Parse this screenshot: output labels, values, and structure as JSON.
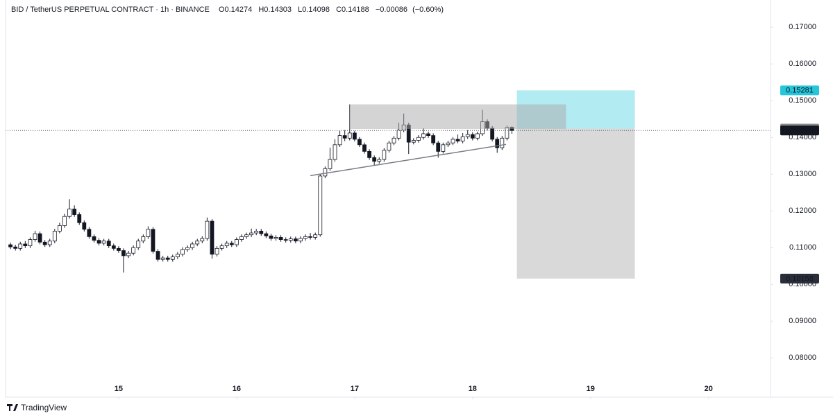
{
  "chart_data": {
    "type": "candlestick",
    "title": "BID / TetherUS PERPETUAL CONTRACT · 1h · BINANCE",
    "ohlc_labels": [
      "O",
      "H",
      "L",
      "C"
    ],
    "change": "−0.00086",
    "change_percent": "(−0.60%)",
    "candles": [
      [
        0.1108,
        0.1114,
        0.1096,
        0.1102
      ],
      [
        0.1102,
        0.1108,
        0.1092,
        0.1098
      ],
      [
        0.1098,
        0.1116,
        0.1092,
        0.111
      ],
      [
        0.111,
        0.1118,
        0.1099,
        0.1105
      ],
      [
        0.1105,
        0.1128,
        0.1099,
        0.1122
      ],
      [
        0.1122,
        0.1146,
        0.1116,
        0.1138
      ],
      [
        0.1138,
        0.1144,
        0.1109,
        0.1115
      ],
      [
        0.1115,
        0.1121,
        0.1102,
        0.1108
      ],
      [
        0.1108,
        0.1124,
        0.1102,
        0.1118
      ],
      [
        0.1118,
        0.1151,
        0.1112,
        0.1145
      ],
      [
        0.1145,
        0.1168,
        0.1139,
        0.116
      ],
      [
        0.116,
        0.1192,
        0.1154,
        0.1185
      ],
      [
        0.1185,
        0.1232,
        0.1179,
        0.1205
      ],
      [
        0.1205,
        0.1215,
        0.1184,
        0.119
      ],
      [
        0.119,
        0.1196,
        0.1162,
        0.1168
      ],
      [
        0.1168,
        0.1174,
        0.1144,
        0.115
      ],
      [
        0.115,
        0.1156,
        0.1124,
        0.113
      ],
      [
        0.113,
        0.1136,
        0.1114,
        0.112
      ],
      [
        0.112,
        0.1126,
        0.1106,
        0.1112
      ],
      [
        0.1112,
        0.1124,
        0.1106,
        0.1118
      ],
      [
        0.1118,
        0.1124,
        0.1099,
        0.1105
      ],
      [
        0.1105,
        0.1111,
        0.1092,
        0.1098
      ],
      [
        0.1098,
        0.1104,
        0.1086,
        0.1092
      ],
      [
        0.1092,
        0.1098,
        0.1032,
        0.1078
      ],
      [
        0.1078,
        0.1091,
        0.1072,
        0.1085
      ],
      [
        0.1085,
        0.1106,
        0.1079,
        0.11
      ],
      [
        0.11,
        0.1124,
        0.1094,
        0.1118
      ],
      [
        0.1118,
        0.1136,
        0.1112,
        0.113
      ],
      [
        0.113,
        0.1158,
        0.1124,
        0.115
      ],
      [
        0.115,
        0.1156,
        0.1084,
        0.109
      ],
      [
        0.109,
        0.1096,
        0.1062,
        0.1068
      ],
      [
        0.1068,
        0.1078,
        0.1062,
        0.1072
      ],
      [
        0.1072,
        0.1078,
        0.1062,
        0.1068
      ],
      [
        0.1068,
        0.1081,
        0.1062,
        0.1075
      ],
      [
        0.1075,
        0.1088,
        0.1069,
        0.1082
      ],
      [
        0.1082,
        0.1101,
        0.1076,
        0.1095
      ],
      [
        0.1095,
        0.1106,
        0.1089,
        0.11
      ],
      [
        0.11,
        0.1116,
        0.1094,
        0.111
      ],
      [
        0.111,
        0.1124,
        0.1104,
        0.1118
      ],
      [
        0.1118,
        0.1131,
        0.1112,
        0.1125
      ],
      [
        0.1125,
        0.1182,
        0.1119,
        0.1172
      ],
      [
        0.1172,
        0.1178,
        0.107,
        0.1082
      ],
      [
        0.1082,
        0.1104,
        0.1076,
        0.1098
      ],
      [
        0.1098,
        0.1111,
        0.1092,
        0.1105
      ],
      [
        0.1105,
        0.1118,
        0.1099,
        0.1112
      ],
      [
        0.1112,
        0.1118,
        0.1102,
        0.1108
      ],
      [
        0.1108,
        0.1128,
        0.1102,
        0.1122
      ],
      [
        0.1122,
        0.1136,
        0.1116,
        0.113
      ],
      [
        0.113,
        0.1141,
        0.1124,
        0.1135
      ],
      [
        0.1135,
        0.1152,
        0.1129,
        0.114
      ],
      [
        0.114,
        0.1151,
        0.1134,
        0.1145
      ],
      [
        0.1145,
        0.1151,
        0.1132,
        0.1138
      ],
      [
        0.1138,
        0.1144,
        0.1126,
        0.1132
      ],
      [
        0.1132,
        0.1138,
        0.1119,
        0.1125
      ],
      [
        0.1125,
        0.1134,
        0.1119,
        0.1128
      ],
      [
        0.1128,
        0.1134,
        0.1116,
        0.1122
      ],
      [
        0.1122,
        0.1128,
        0.1114,
        0.112
      ],
      [
        0.112,
        0.113,
        0.1114,
        0.1124
      ],
      [
        0.1124,
        0.113,
        0.1112,
        0.1118
      ],
      [
        0.1118,
        0.1131,
        0.1112,
        0.1125
      ],
      [
        0.1125,
        0.1136,
        0.1119,
        0.113
      ],
      [
        0.113,
        0.114,
        0.1122,
        0.1128
      ],
      [
        0.1128,
        0.1141,
        0.1122,
        0.1135
      ],
      [
        0.1135,
        0.13,
        0.113,
        0.1295
      ],
      [
        0.1295,
        0.1321,
        0.1289,
        0.1315
      ],
      [
        0.1315,
        0.1372,
        0.1309,
        0.134
      ],
      [
        0.134,
        0.1395,
        0.1334,
        0.138
      ],
      [
        0.138,
        0.1418,
        0.1374,
        0.1405
      ],
      [
        0.1405,
        0.142,
        0.139,
        0.1398
      ],
      [
        0.1398,
        0.149,
        0.1392,
        0.1412
      ],
      [
        0.1412,
        0.1418,
        0.1389,
        0.1395
      ],
      [
        0.1395,
        0.1401,
        0.1374,
        0.138
      ],
      [
        0.138,
        0.1386,
        0.1356,
        0.1362
      ],
      [
        0.1362,
        0.1368,
        0.1339,
        0.1345
      ],
      [
        0.1345,
        0.1351,
        0.1325,
        0.1335
      ],
      [
        0.1335,
        0.1346,
        0.1329,
        0.134
      ],
      [
        0.134,
        0.1371,
        0.1334,
        0.1365
      ],
      [
        0.1365,
        0.1391,
        0.1359,
        0.1385
      ],
      [
        0.1385,
        0.1404,
        0.1379,
        0.1398
      ],
      [
        0.1398,
        0.144,
        0.1392,
        0.142
      ],
      [
        0.142,
        0.1465,
        0.1414,
        0.1434
      ],
      [
        0.1434,
        0.144,
        0.1355,
        0.1387
      ],
      [
        0.1387,
        0.1398,
        0.1381,
        0.1392
      ],
      [
        0.1392,
        0.1406,
        0.1386,
        0.14
      ],
      [
        0.14,
        0.1425,
        0.1394,
        0.141
      ],
      [
        0.141,
        0.1416,
        0.1399,
        0.1405
      ],
      [
        0.1405,
        0.1411,
        0.1379,
        0.1385
      ],
      [
        0.1385,
        0.1391,
        0.1345,
        0.1362
      ],
      [
        0.1362,
        0.1386,
        0.1356,
        0.138
      ],
      [
        0.138,
        0.1391,
        0.1374,
        0.1385
      ],
      [
        0.1385,
        0.1401,
        0.1379,
        0.1395
      ],
      [
        0.1395,
        0.1408,
        0.1384,
        0.139
      ],
      [
        0.139,
        0.1412,
        0.1384,
        0.1402
      ],
      [
        0.1402,
        0.142,
        0.1396,
        0.1408
      ],
      [
        0.1408,
        0.1414,
        0.1392,
        0.1398
      ],
      [
        0.1398,
        0.1416,
        0.1392,
        0.141
      ],
      [
        0.141,
        0.1475,
        0.1404,
        0.1443
      ],
      [
        0.1443,
        0.1449,
        0.1419,
        0.1425
      ],
      [
        0.1425,
        0.1431,
        0.1389,
        0.1395
      ],
      [
        0.1395,
        0.1401,
        0.1358,
        0.1372
      ],
      [
        0.1372,
        0.1404,
        0.1366,
        0.1398
      ],
      [
        0.1398,
        0.1432,
        0.1392,
        0.14274
      ],
      [
        0.14274,
        0.14303,
        0.14098,
        0.14188
      ]
    ],
    "up_color": "#ffffff",
    "down_color": "#131722",
    "wick_color": "#131722",
    "xlim": [
      -1,
      154.6
    ],
    "xticks": [
      {
        "value": 22,
        "label": "15"
      },
      {
        "value": 46,
        "label": "16"
      },
      {
        "value": 70,
        "label": "17"
      },
      {
        "value": 94,
        "label": "18"
      },
      {
        "value": 118,
        "label": "19"
      },
      {
        "value": 142,
        "label": "20"
      }
    ],
    "ylim": [
      0.0693,
      0.1774
    ],
    "yticks": [
      {
        "value": 0.17,
        "label": "0.17000"
      },
      {
        "value": 0.16,
        "label": "0.16000"
      },
      {
        "value": 0.15,
        "label": "0.15000"
      },
      {
        "value": 0.14,
        "label": "0.14000"
      },
      {
        "value": 0.13,
        "label": "0.13000"
      },
      {
        "value": 0.12,
        "label": "0.12000"
      },
      {
        "value": 0.11,
        "label": "0.11000"
      },
      {
        "value": 0.1,
        "label": "0.10000"
      },
      {
        "value": 0.09,
        "label": "0.09000"
      },
      {
        "value": 0.08,
        "label": "0.08000"
      }
    ],
    "rectangle": {
      "x": [
        69,
        113
      ],
      "y": [
        0.1423,
        0.149
      ],
      "color": "#a9a9a9"
    },
    "trend_line": {
      "x": [
        61,
        100.8
      ],
      "y": [
        0.1296,
        0.1381
      ],
      "color": "#787b86"
    },
    "position": {
      "x": [
        103,
        127
      ],
      "entry": 0.14241,
      "target": 0.15281,
      "stop": 0.10158,
      "target_color": "#b2ebf2",
      "stop_color": "#d9d9d9",
      "entry_tag_color": "#8a8a8a",
      "target_tag_color": "#26c6da",
      "stop_tag_color": "#2a2e39"
    },
    "last_price_tag_color": "#131722",
    "branding": "TradingView"
  }
}
